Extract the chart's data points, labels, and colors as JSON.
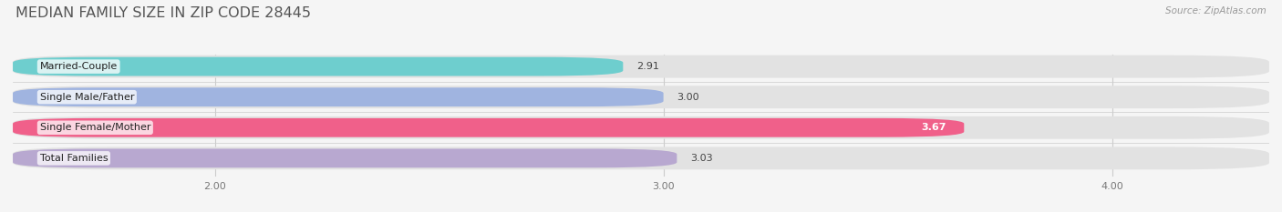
{
  "title": "MEDIAN FAMILY SIZE IN ZIP CODE 28445",
  "source": "Source: ZipAtlas.com",
  "categories": [
    "Married-Couple",
    "Single Male/Father",
    "Single Female/Mother",
    "Total Families"
  ],
  "values": [
    2.91,
    3.0,
    3.67,
    3.03
  ],
  "bar_colors": [
    "#6ecece",
    "#a0b4e0",
    "#f0608a",
    "#b8a8d0"
  ],
  "bar_label_colors": [
    "#444444",
    "#444444",
    "#ffffff",
    "#444444"
  ],
  "xlim_left": 1.55,
  "xlim_right": 4.35,
  "xticks": [
    2.0,
    3.0,
    4.0
  ],
  "xtick_labels": [
    "2.00",
    "3.00",
    "4.00"
  ],
  "background_color": "#f5f5f5",
  "bar_bg_color": "#e2e2e2",
  "title_color": "#555555",
  "title_fontsize": 11.5,
  "label_fontsize": 8,
  "value_fontsize": 8,
  "source_fontsize": 7.5,
  "bar_height": 0.62,
  "fig_width": 14.06,
  "fig_height": 2.33
}
